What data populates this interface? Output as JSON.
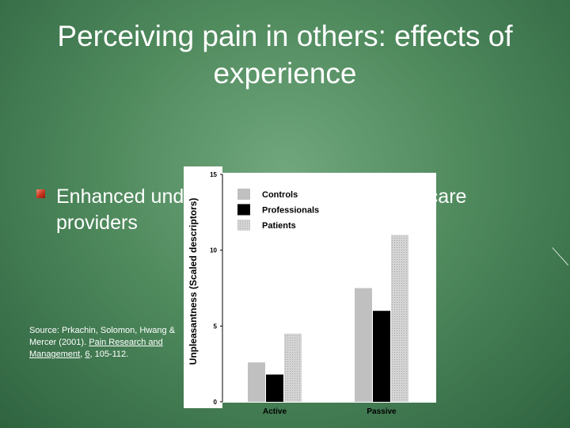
{
  "slide": {
    "title_line1": "Perceiving pain in others: effects of",
    "title_line2": "experience",
    "bullet": "Enhanced understanding of pain in health-care providers",
    "source": {
      "prefix": "Source: Prkachin, Solomon, Hwang & Mercer (2001). ",
      "journal": "Pain Research and Management",
      "sep": ", ",
      "volume": "6",
      "pages": ", 105-112."
    }
  },
  "colors": {
    "background": "#4f8a5d",
    "bullet_marker": "#c8341e",
    "controls": "#c0c0c0",
    "professionals": "#000000",
    "patients": "#d4d4d4"
  },
  "chart_data": {
    "type": "bar",
    "categories": [
      "Active",
      "Passive"
    ],
    "series": [
      {
        "name": "Controls",
        "values": [
          2.6,
          7.5
        ]
      },
      {
        "name": "Professionals",
        "values": [
          1.8,
          6.0
        ]
      },
      {
        "name": "Patients",
        "values": [
          4.5,
          11.0
        ]
      }
    ],
    "ylabel": "Unpleasantness (Scaled descriptors)",
    "ylim": [
      0,
      15
    ],
    "yticks": [
      0,
      5,
      10,
      15
    ],
    "legend_position": "top-left",
    "grid": false
  }
}
